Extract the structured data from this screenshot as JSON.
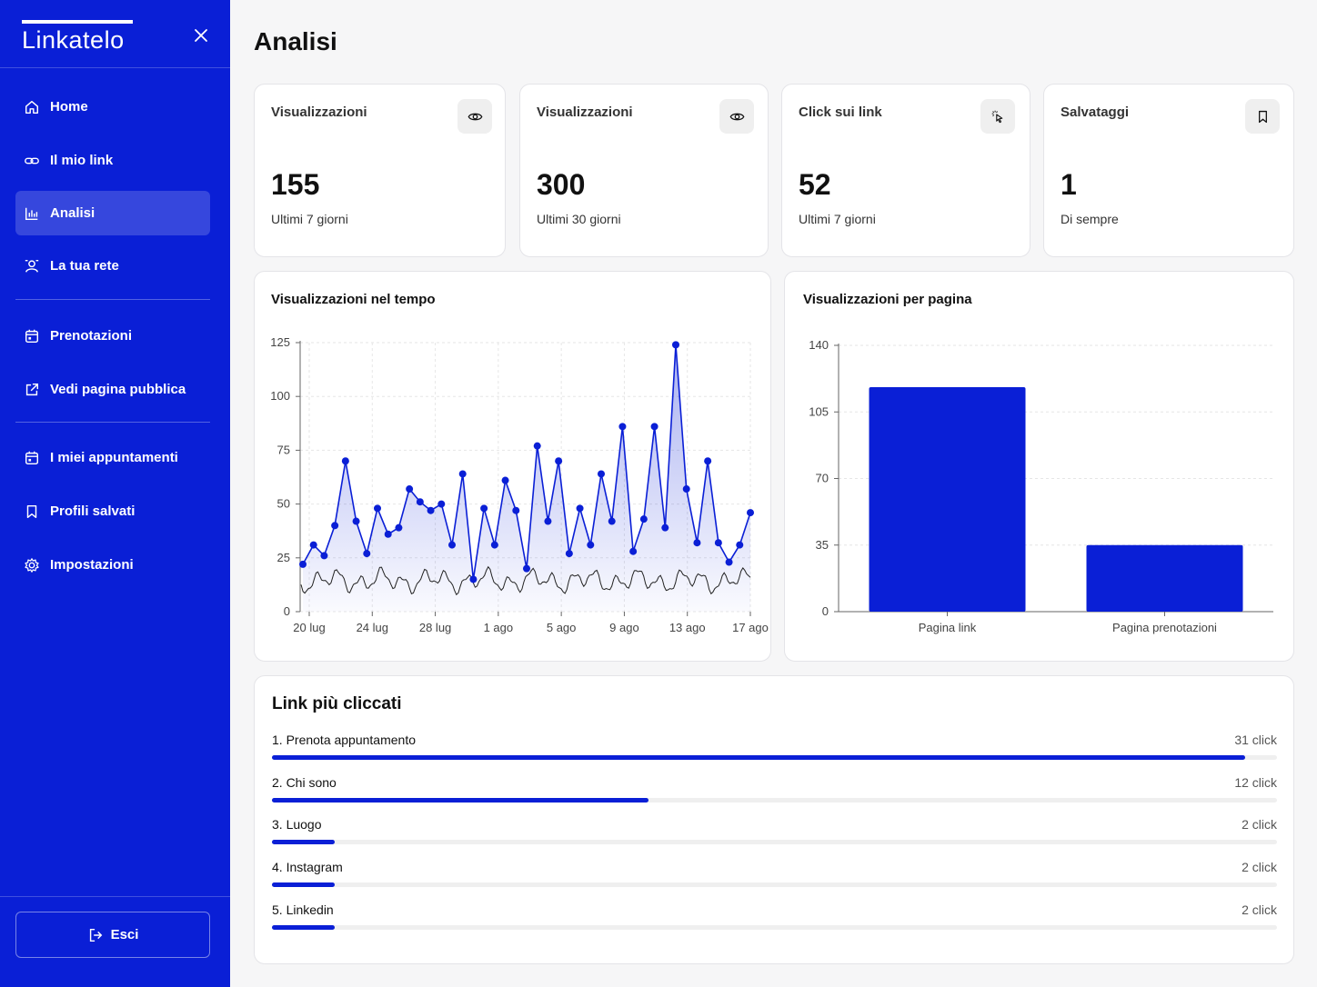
{
  "app": {
    "brand": "Linkatelo"
  },
  "sidebar": {
    "items": [
      {
        "label": "Home",
        "icon": "home-icon"
      },
      {
        "label": "Il mio link",
        "icon": "link-icon"
      },
      {
        "label": "Analisi",
        "icon": "bar-chart-icon",
        "active": true
      },
      {
        "label": "La tua rete",
        "icon": "network-icon"
      },
      {
        "label": "Prenotazioni",
        "icon": "calendar-icon"
      },
      {
        "label": "Vedi pagina pubblica",
        "icon": "external-link-icon"
      },
      {
        "label": "I miei appuntamenti",
        "icon": "calendar-icon"
      },
      {
        "label": "Profili salvati",
        "icon": "bookmark-icon"
      },
      {
        "label": "Impostazioni",
        "icon": "gear-icon"
      }
    ],
    "logout_label": "Esci"
  },
  "page": {
    "title": "Analisi"
  },
  "stats": [
    {
      "title": "Visualizzazioni",
      "value": "155",
      "sub": "Ultimi 7 giorni",
      "icon": "eye-icon"
    },
    {
      "title": "Visualizzazioni",
      "value": "300",
      "sub": "Ultimi 30 giorni",
      "icon": "eye-icon"
    },
    {
      "title": "Click sui link",
      "value": "52",
      "sub": "Ultimi 7 giorni",
      "icon": "cursor-click-icon"
    },
    {
      "title": "Salvataggi",
      "value": "1",
      "sub": "Di sempre",
      "icon": "bookmark-icon"
    }
  ],
  "chart_data": [
    {
      "type": "line",
      "title": "Visualizzazioni nel tempo",
      "xlabel": "",
      "ylabel": "",
      "ylim": [
        0,
        125
      ],
      "yticks": [
        0,
        25,
        50,
        75,
        100,
        125
      ],
      "xticks": [
        "20 lug",
        "24 lug",
        "28 lug",
        "1 ago",
        "5 ago",
        "9 ago",
        "13 ago",
        "17 ago"
      ],
      "grid": true,
      "series": [
        {
          "values": [
            22,
            31,
            26,
            40,
            70,
            42,
            27,
            48,
            36,
            39,
            57,
            51,
            47,
            50,
            31,
            64,
            15,
            48,
            31,
            61,
            47,
            20,
            77,
            42,
            70,
            27,
            48,
            31,
            64,
            42,
            86,
            28,
            43,
            86,
            39,
            124,
            57,
            32,
            70,
            32,
            23,
            31,
            46
          ]
        }
      ]
    },
    {
      "type": "bar",
      "title": "Visualizzazioni per pagina",
      "categories": [
        "Pagina link",
        "Pagina prenotazioni"
      ],
      "values": [
        118,
        35
      ],
      "ylim": [
        0,
        140
      ],
      "yticks": [
        0,
        35,
        70,
        105,
        140
      ],
      "grid": true
    }
  ],
  "top_links": {
    "title": "Link più cliccati",
    "items": [
      {
        "name": "1. Prenota appuntamento",
        "count": "31 click",
        "clicks": 31
      },
      {
        "name": "2. Chi sono",
        "count": "12 click",
        "clicks": 12
      },
      {
        "name": "3. Luogo",
        "count": "2 click",
        "clicks": 2
      },
      {
        "name": "4. Instagram",
        "count": "2 click",
        "clicks": 2
      },
      {
        "name": "5. Linkedin",
        "count": "2 click",
        "clicks": 2
      }
    ]
  },
  "colors": {
    "brand": "#0a1fd6",
    "background": "#f6f6f7",
    "card": "#ffffff"
  }
}
